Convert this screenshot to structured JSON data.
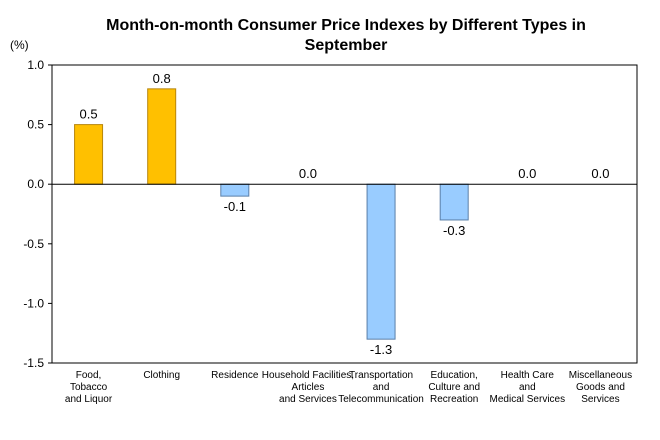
{
  "chart_data": {
    "type": "bar",
    "title": "Month-on-month Consumer Price Indexes by Different Types in September",
    "title_lines": [
      "Month-on-month Consumer Price Indexes by Different Types in",
      "September"
    ],
    "unit_label": "(%)",
    "ylim": [
      -1.5,
      1.0
    ],
    "yticks": [
      "1.0",
      "0.5",
      "0.0",
      "-0.5",
      "-1.0",
      "-1.5"
    ],
    "ytick_values": [
      1.0,
      0.5,
      0.0,
      -0.5,
      -1.0,
      -1.5
    ],
    "grid": false,
    "categories": [
      "Food, Tobacco and Liquor",
      "Clothing",
      "Residence",
      "Household Facilities, Articles and Services",
      "Transportation and Telecommunication",
      "Education, Culture and Recreation",
      "Health Care and Medical Services",
      "Miscellaneous Goods and Services"
    ],
    "category_lines": [
      [
        "Food,",
        "Tobacco",
        "and Liquor"
      ],
      [
        "Clothing"
      ],
      [
        "Residence"
      ],
      [
        "Household Facilities,",
        "Articles",
        "and Services"
      ],
      [
        "Transportation",
        "and",
        "Telecommunication"
      ],
      [
        "Education,",
        "Culture and",
        "Recreation"
      ],
      [
        "Health Care",
        "and",
        "Medical Services"
      ],
      [
        "Miscellaneous",
        "Goods and",
        "Services"
      ]
    ],
    "values": [
      0.5,
      0.8,
      -0.1,
      0.0,
      -1.3,
      -0.3,
      0.0,
      0.0
    ],
    "value_labels": [
      "0.5",
      "0.8",
      "-0.1",
      "0.0",
      "-1.3",
      "-0.3",
      "0.0",
      "0.0"
    ],
    "colors": {
      "positive_fill": "#FFC000",
      "positive_stroke": "#B8860B",
      "negative_fill": "#99CCFF",
      "negative_stroke": "#5A7FA8",
      "axis": "#000000"
    }
  }
}
